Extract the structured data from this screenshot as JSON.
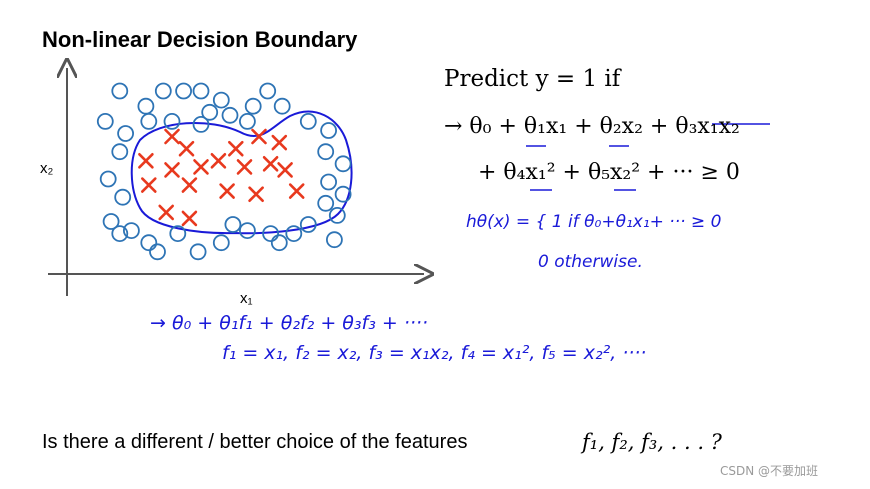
{
  "slide": {
    "title": "Non-linear Decision Boundary",
    "predict": "Predict y = 1 if",
    "eq_line1": "→ θ₀ + θ₁x₁ + θ₂x₂ + θ₃x₁x₂",
    "eq_line2": "+ θ₄x₁² + θ₅x₂² + ··· ≥ 0",
    "hand_h1": "hθ(x) = { 1   if   θ₀+θ₁x₁+ ··· ≥ 0",
    "hand_h2": "0    otherwise.",
    "hand_h3": "→ θ₀ + θ₁f₁ + θ₂f₂ + θ₃f₃ + ····",
    "hand_h4": "f₁ = x₁,   f₂ = x₂,   f₃ = x₁x₂,   f₄ = x₁²,   f₅ = x₂²,  ····",
    "question": "Is there a different / better choice of the features",
    "question_math": "f₁, f₂, f₃, . . . ?",
    "watermark": "CSDN @不要加班"
  },
  "chart_data": {
    "type": "scatter",
    "xlabel": "x₁",
    "ylabel": "x₂",
    "xlim": [
      0,
      10
    ],
    "ylim": [
      0,
      6
    ],
    "grid": false,
    "colors": {
      "negative": "#2e74b5",
      "positive": "#e8391e",
      "boundary": "#1a1ad8",
      "axes": "#555555"
    },
    "series": [
      {
        "marker": "o",
        "points": [
          [
            1.2,
            5.9
          ],
          [
            2.1,
            5.4
          ],
          [
            2.7,
            5.9
          ],
          [
            3.4,
            5.9
          ],
          [
            4.0,
            5.9
          ],
          [
            4.7,
            5.6
          ],
          [
            5.8,
            5.4
          ],
          [
            6.3,
            5.9
          ],
          [
            6.8,
            5.4
          ],
          [
            7.7,
            4.9
          ],
          [
            0.7,
            4.9
          ],
          [
            1.4,
            4.5
          ],
          [
            2.2,
            4.9
          ],
          [
            3.0,
            4.9
          ],
          [
            4.0,
            4.8
          ],
          [
            4.3,
            5.2
          ],
          [
            5.0,
            5.1
          ],
          [
            5.6,
            4.9
          ],
          [
            1.2,
            3.9
          ],
          [
            0.8,
            3.0
          ],
          [
            1.3,
            2.4
          ],
          [
            0.9,
            1.6
          ],
          [
            1.2,
            1.2
          ],
          [
            1.6,
            1.3
          ],
          [
            8.4,
            4.6
          ],
          [
            8.3,
            3.9
          ],
          [
            8.9,
            3.5
          ],
          [
            8.4,
            2.9
          ],
          [
            8.9,
            2.5
          ],
          [
            8.3,
            2.2
          ],
          [
            8.7,
            1.8
          ],
          [
            7.7,
            1.5
          ],
          [
            2.2,
            0.9
          ],
          [
            2.5,
            0.6
          ],
          [
            3.2,
            1.2
          ],
          [
            3.9,
            0.6
          ],
          [
            4.7,
            0.9
          ],
          [
            5.1,
            1.5
          ],
          [
            5.6,
            1.3
          ],
          [
            6.4,
            1.2
          ],
          [
            6.7,
            0.9
          ],
          [
            7.2,
            1.2
          ],
          [
            8.6,
            1.0
          ]
        ]
      },
      {
        "marker": "x",
        "points": [
          [
            3.0,
            4.4
          ],
          [
            3.5,
            4.0
          ],
          [
            5.2,
            4.0
          ],
          [
            6.0,
            4.4
          ],
          [
            6.7,
            4.2
          ],
          [
            2.1,
            3.6
          ],
          [
            3.0,
            3.3
          ],
          [
            4.0,
            3.4
          ],
          [
            4.6,
            3.6
          ],
          [
            5.5,
            3.4
          ],
          [
            6.4,
            3.5
          ],
          [
            6.9,
            3.3
          ],
          [
            2.2,
            2.8
          ],
          [
            3.6,
            2.8
          ],
          [
            4.9,
            2.6
          ],
          [
            5.9,
            2.5
          ],
          [
            7.3,
            2.6
          ],
          [
            2.8,
            1.9
          ],
          [
            3.6,
            1.7
          ]
        ]
      }
    ]
  }
}
